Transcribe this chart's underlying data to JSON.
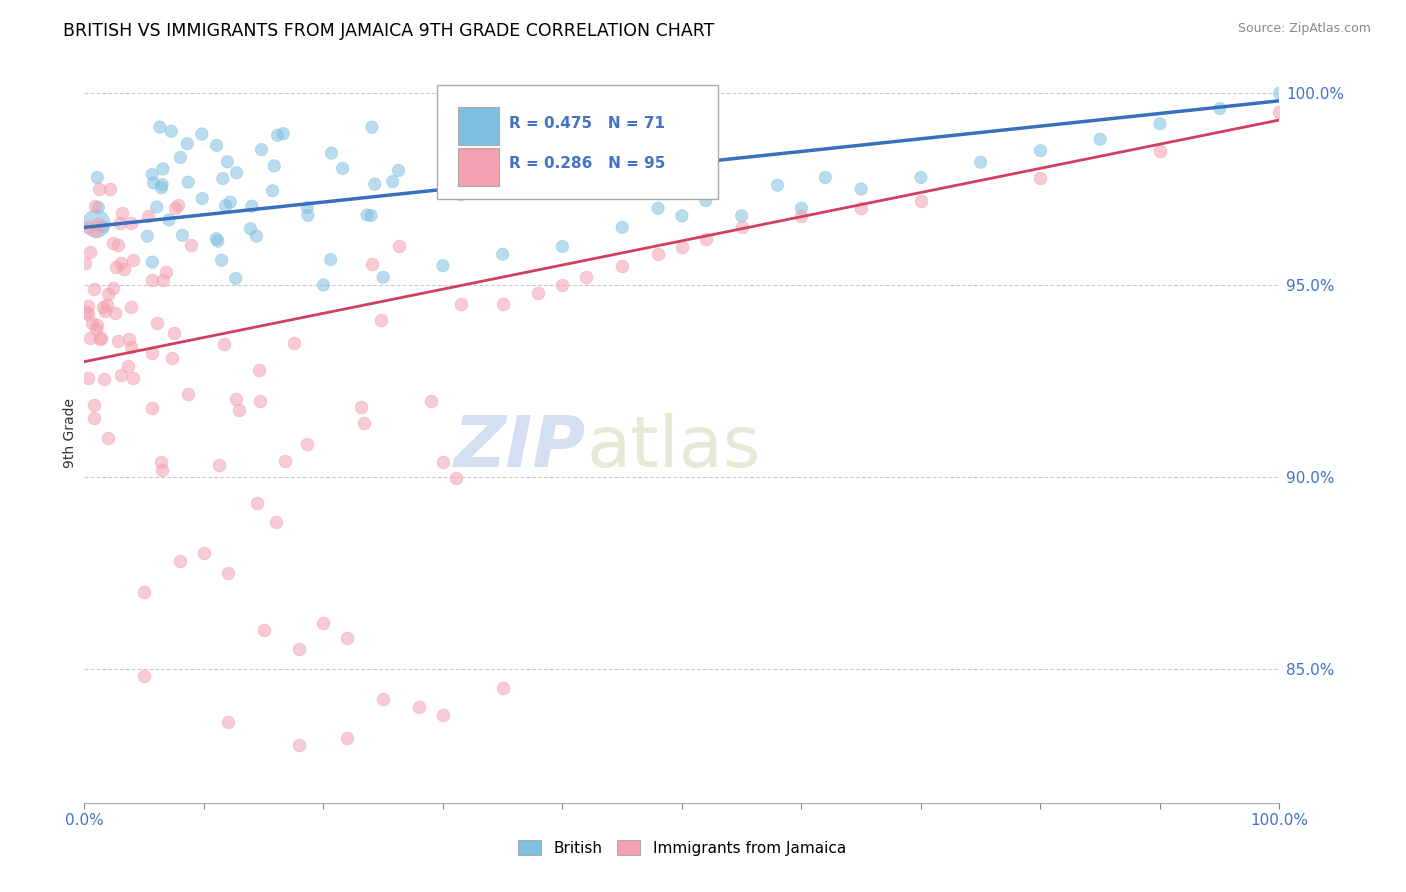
{
  "title": "BRITISH VS IMMIGRANTS FROM JAMAICA 9TH GRADE CORRELATION CHART",
  "source_text": "Source: ZipAtlas.com",
  "ylabel": "9th Grade",
  "xlim": [
    0.0,
    1.0
  ],
  "ylim": [
    0.815,
    1.008
  ],
  "ytick_labels": [
    "85.0%",
    "90.0%",
    "95.0%",
    "100.0%"
  ],
  "ytick_values": [
    0.85,
    0.9,
    0.95,
    1.0
  ],
  "legend_r_blue": "R = 0.475",
  "legend_n_blue": "N = 71",
  "legend_r_pink": "R = 0.286",
  "legend_n_pink": "N = 95",
  "blue_color": "#7fbfdf",
  "pink_color": "#f4a0b0",
  "blue_line_color": "#3a6fbd",
  "pink_line_color": "#d04060",
  "watermark_zip": "ZIP",
  "watermark_atlas": "atlas",
  "blue_line_x0": 0.0,
  "blue_line_y0": 0.965,
  "blue_line_x1": 1.0,
  "blue_line_y1": 0.998,
  "pink_line_x0": 0.0,
  "pink_line_y0": 0.93,
  "pink_line_x1": 1.0,
  "pink_line_y1": 0.993
}
